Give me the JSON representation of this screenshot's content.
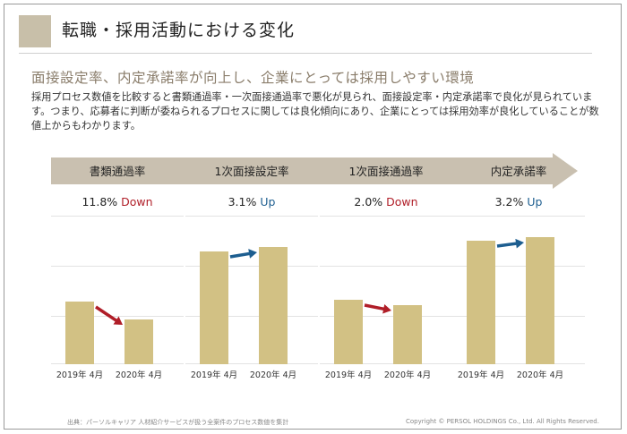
{
  "header": {
    "title": "転職・採用活動における変化"
  },
  "subtitle": "面接設定率、内定承諾率が向上し、企業にとっては採用しやすい環境",
  "description": "採用プロセス数値を比較すると書類通過率・一次面接通過率で悪化が見られ、面接設定率・内定承諾率で良化が見られています。つまり、応募者に判断が委ねられるプロセスに関しては良化傾向にあり、企業にとっては採用効率が良化していることが数値上からもわかります。",
  "chart_data": {
    "type": "bar",
    "categories": [
      "2019年 4月",
      "2020年 4月"
    ],
    "series_note": "values relative, inferred from bar heights",
    "panels": [
      {
        "label": "書類通過率",
        "change_value": "11.8%",
        "change_dir": "Down",
        "values": [
          44,
          31
        ],
        "colors": {
          "change": "#b01e28",
          "arrow": "#b01e28"
        }
      },
      {
        "label": "1次面接設定率",
        "change_value": "3.1%",
        "change_dir": "Up",
        "values": [
          79,
          82
        ],
        "colors": {
          "change": "#1d5e90",
          "arrow": "#1d5e90"
        }
      },
      {
        "label": "1次面接通過率",
        "change_value": "2.0%",
        "change_dir": "Down",
        "values": [
          45,
          41
        ],
        "colors": {
          "change": "#b01e28",
          "arrow": "#b01e28"
        }
      },
      {
        "label": "内定承諾率",
        "change_value": "3.2%",
        "change_dir": "Up",
        "values": [
          86,
          89
        ],
        "colors": {
          "change": "#1d5e90",
          "arrow": "#1d5e90"
        }
      }
    ],
    "ylim": [
      0,
      100
    ],
    "bar_color": "#d2c184"
  },
  "footer": {
    "source": "出典：パーソルキャリア 人材紹介サービスが扱う全案件のプロセス数値を集計",
    "copyright": "Copyright © PERSOL HOLDINGS Co., Ltd. All Rights Reserved."
  },
  "colors": {
    "accent_square": "#c8bfa9",
    "arrow_band": "#c9c0b0",
    "subtitle": "#8a7d6b"
  }
}
